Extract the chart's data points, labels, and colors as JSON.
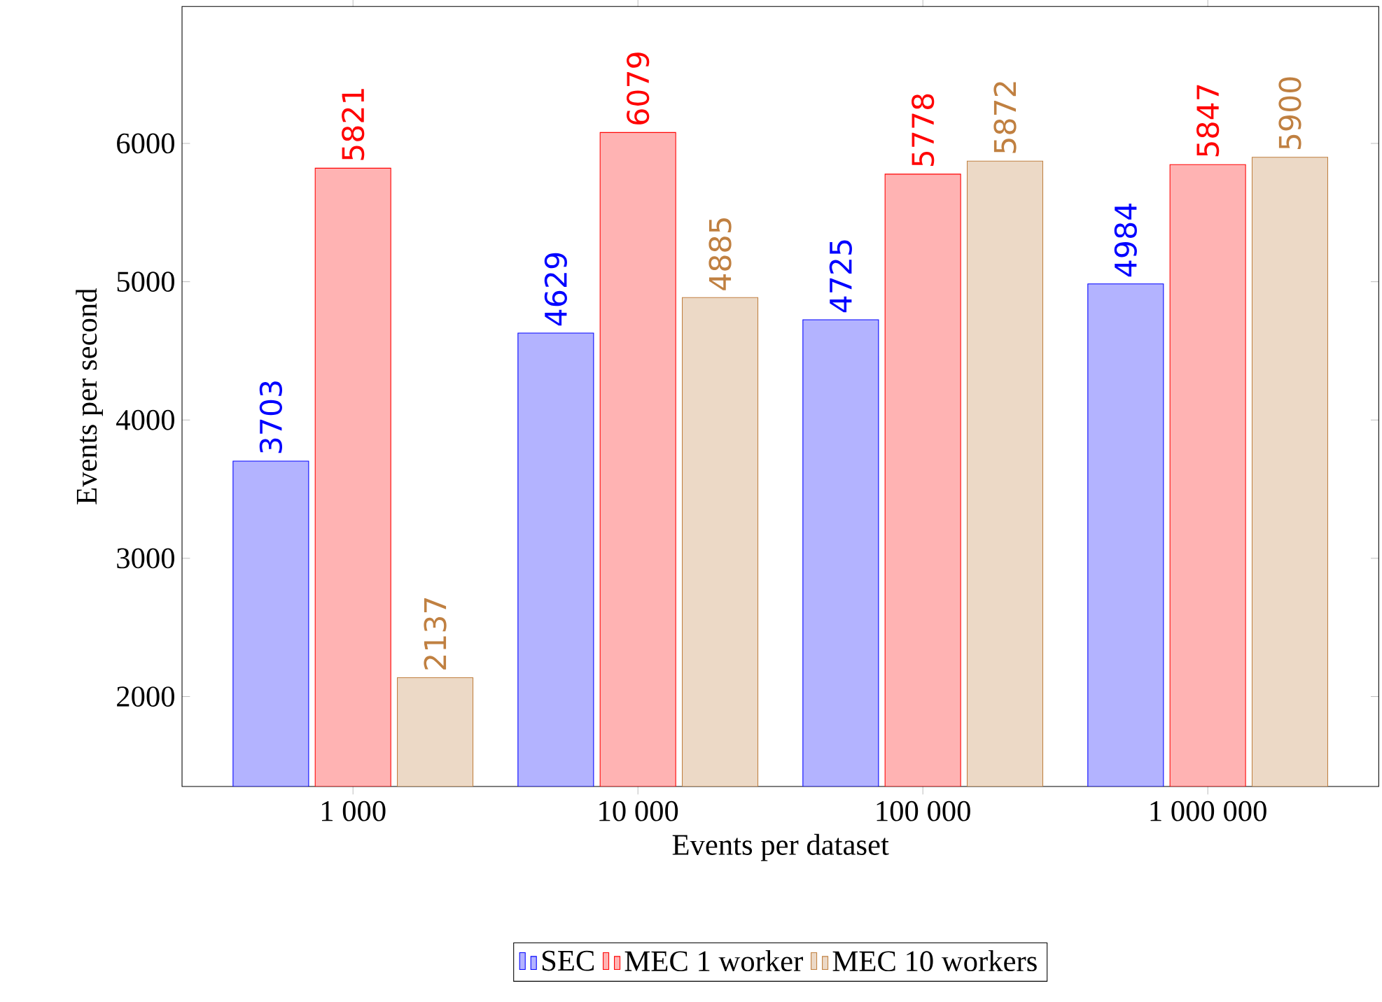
{
  "chart_data": {
    "type": "bar",
    "xlabel": "Events per dataset",
    "ylabel": "Events per second",
    "categories": [
      "1 000",
      "10 000",
      "100 000",
      "1 000 000"
    ],
    "series": [
      {
        "name": "SEC",
        "color": "#b3b3ff",
        "values": [
          3703,
          4629,
          4725,
          4984
        ]
      },
      {
        "name": "MEC 1 worker",
        "color": "#ffb3b3",
        "values": [
          5821,
          6079,
          5778,
          5847
        ]
      },
      {
        "name": "MEC 10 workers",
        "color": "#ecd9c6",
        "values": [
          2137,
          4885,
          5872,
          5900
        ]
      }
    ],
    "ylim": [
      1350,
      6990
    ],
    "yticks": [
      2000,
      3000,
      4000,
      5000,
      6000
    ],
    "data_labels": true,
    "legend": "bottom",
    "grid": false
  }
}
